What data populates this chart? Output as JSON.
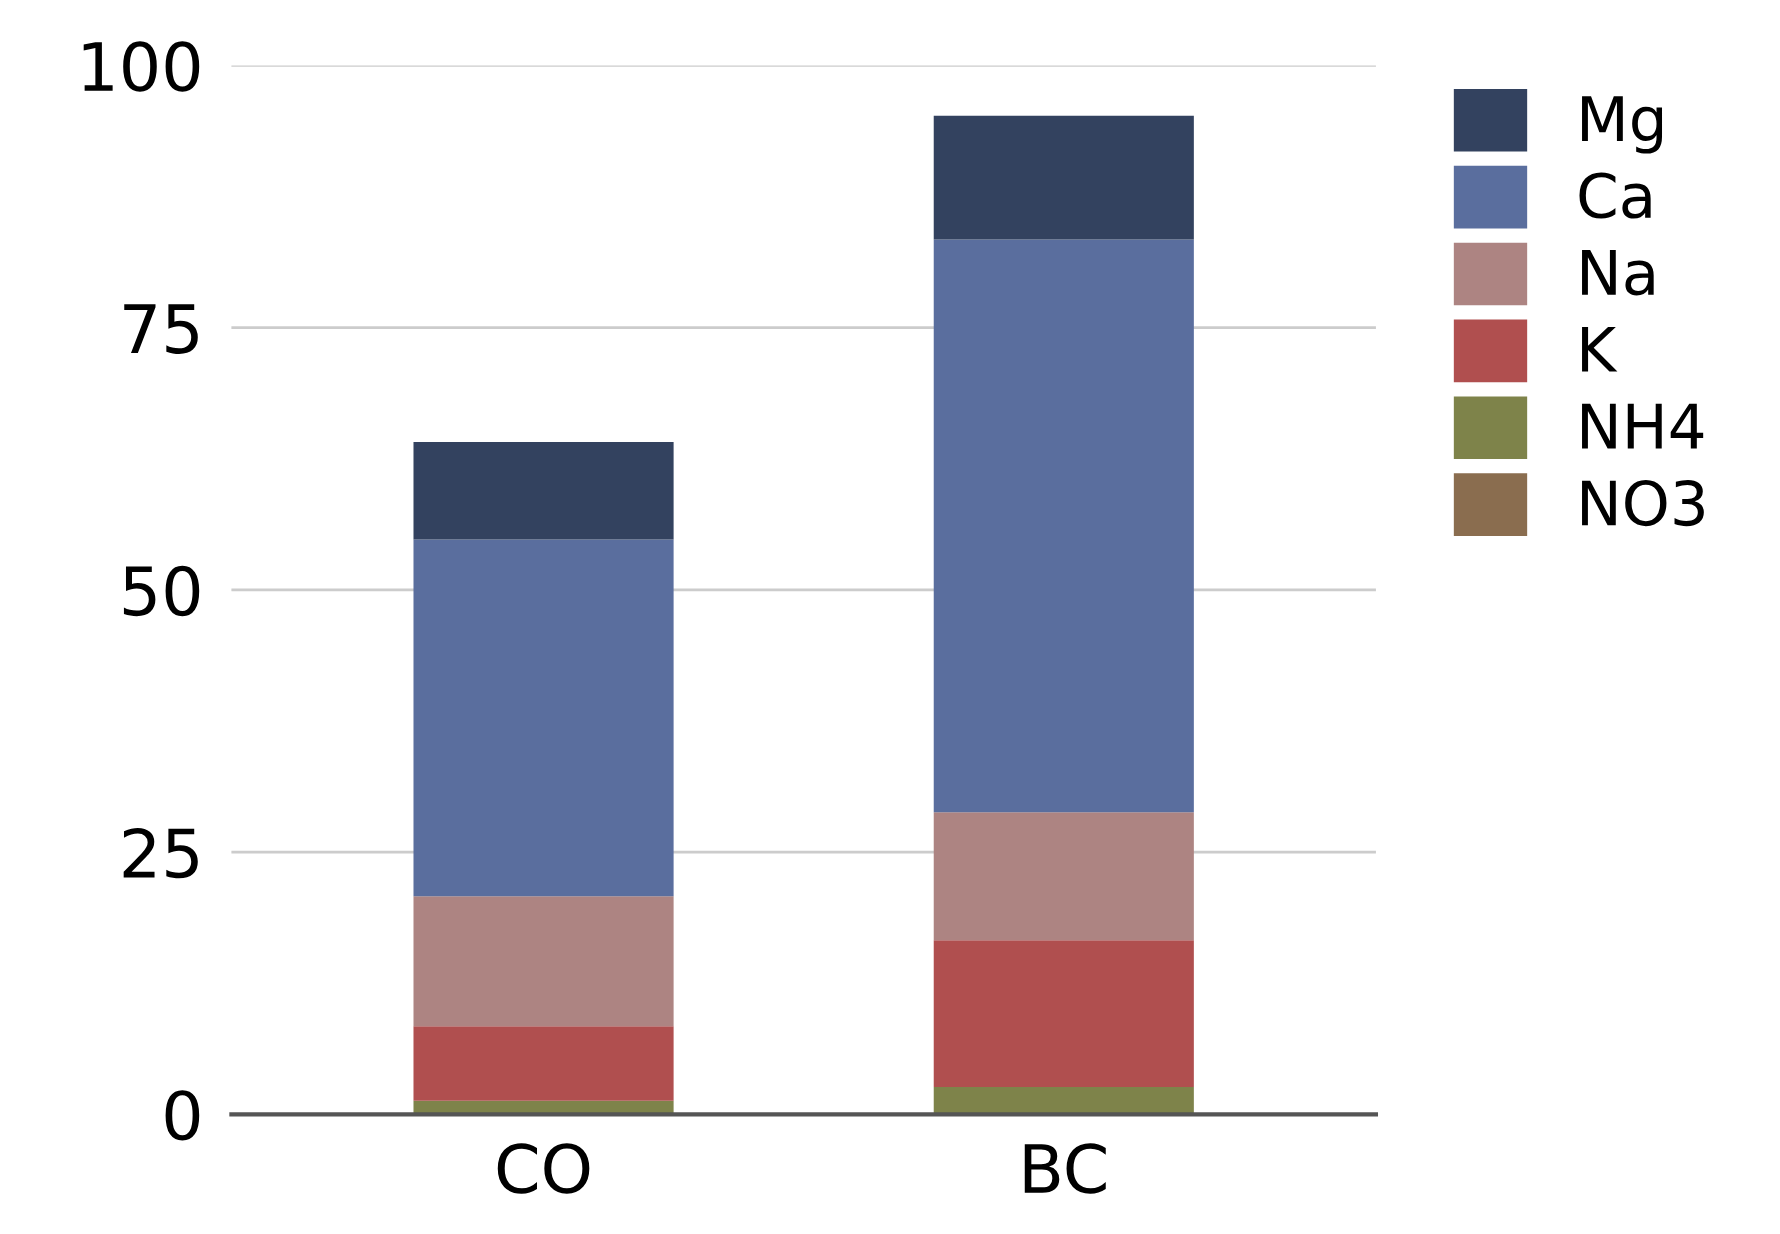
{
  "chart_data": {
    "type": "bar",
    "stacked": true,
    "categories": [
      "CO",
      "BC"
    ],
    "series": [
      {
        "name": "NO3",
        "color": "#8a6d4f",
        "values": [
          null,
          null
        ]
      },
      {
        "name": "NH4",
        "color": "#7e834a",
        "values": [
          1.3,
          2.6
        ]
      },
      {
        "name": "K",
        "color": "#b04f4f",
        "values": [
          7.1,
          14.0
        ]
      },
      {
        "name": "Na",
        "color": "#ad8482",
        "values": [
          12.4,
          12.2
        ]
      },
      {
        "name": "Ca",
        "color": "#5a6e9e",
        "values": [
          34.0,
          54.6
        ]
      },
      {
        "name": "Mg",
        "color": "#33425f",
        "values": [
          9.3,
          11.8
        ]
      }
    ],
    "ylim": [
      0,
      100
    ],
    "yticks": [
      0,
      25,
      50,
      75,
      100
    ],
    "grid": "y",
    "legend": "top right"
  }
}
